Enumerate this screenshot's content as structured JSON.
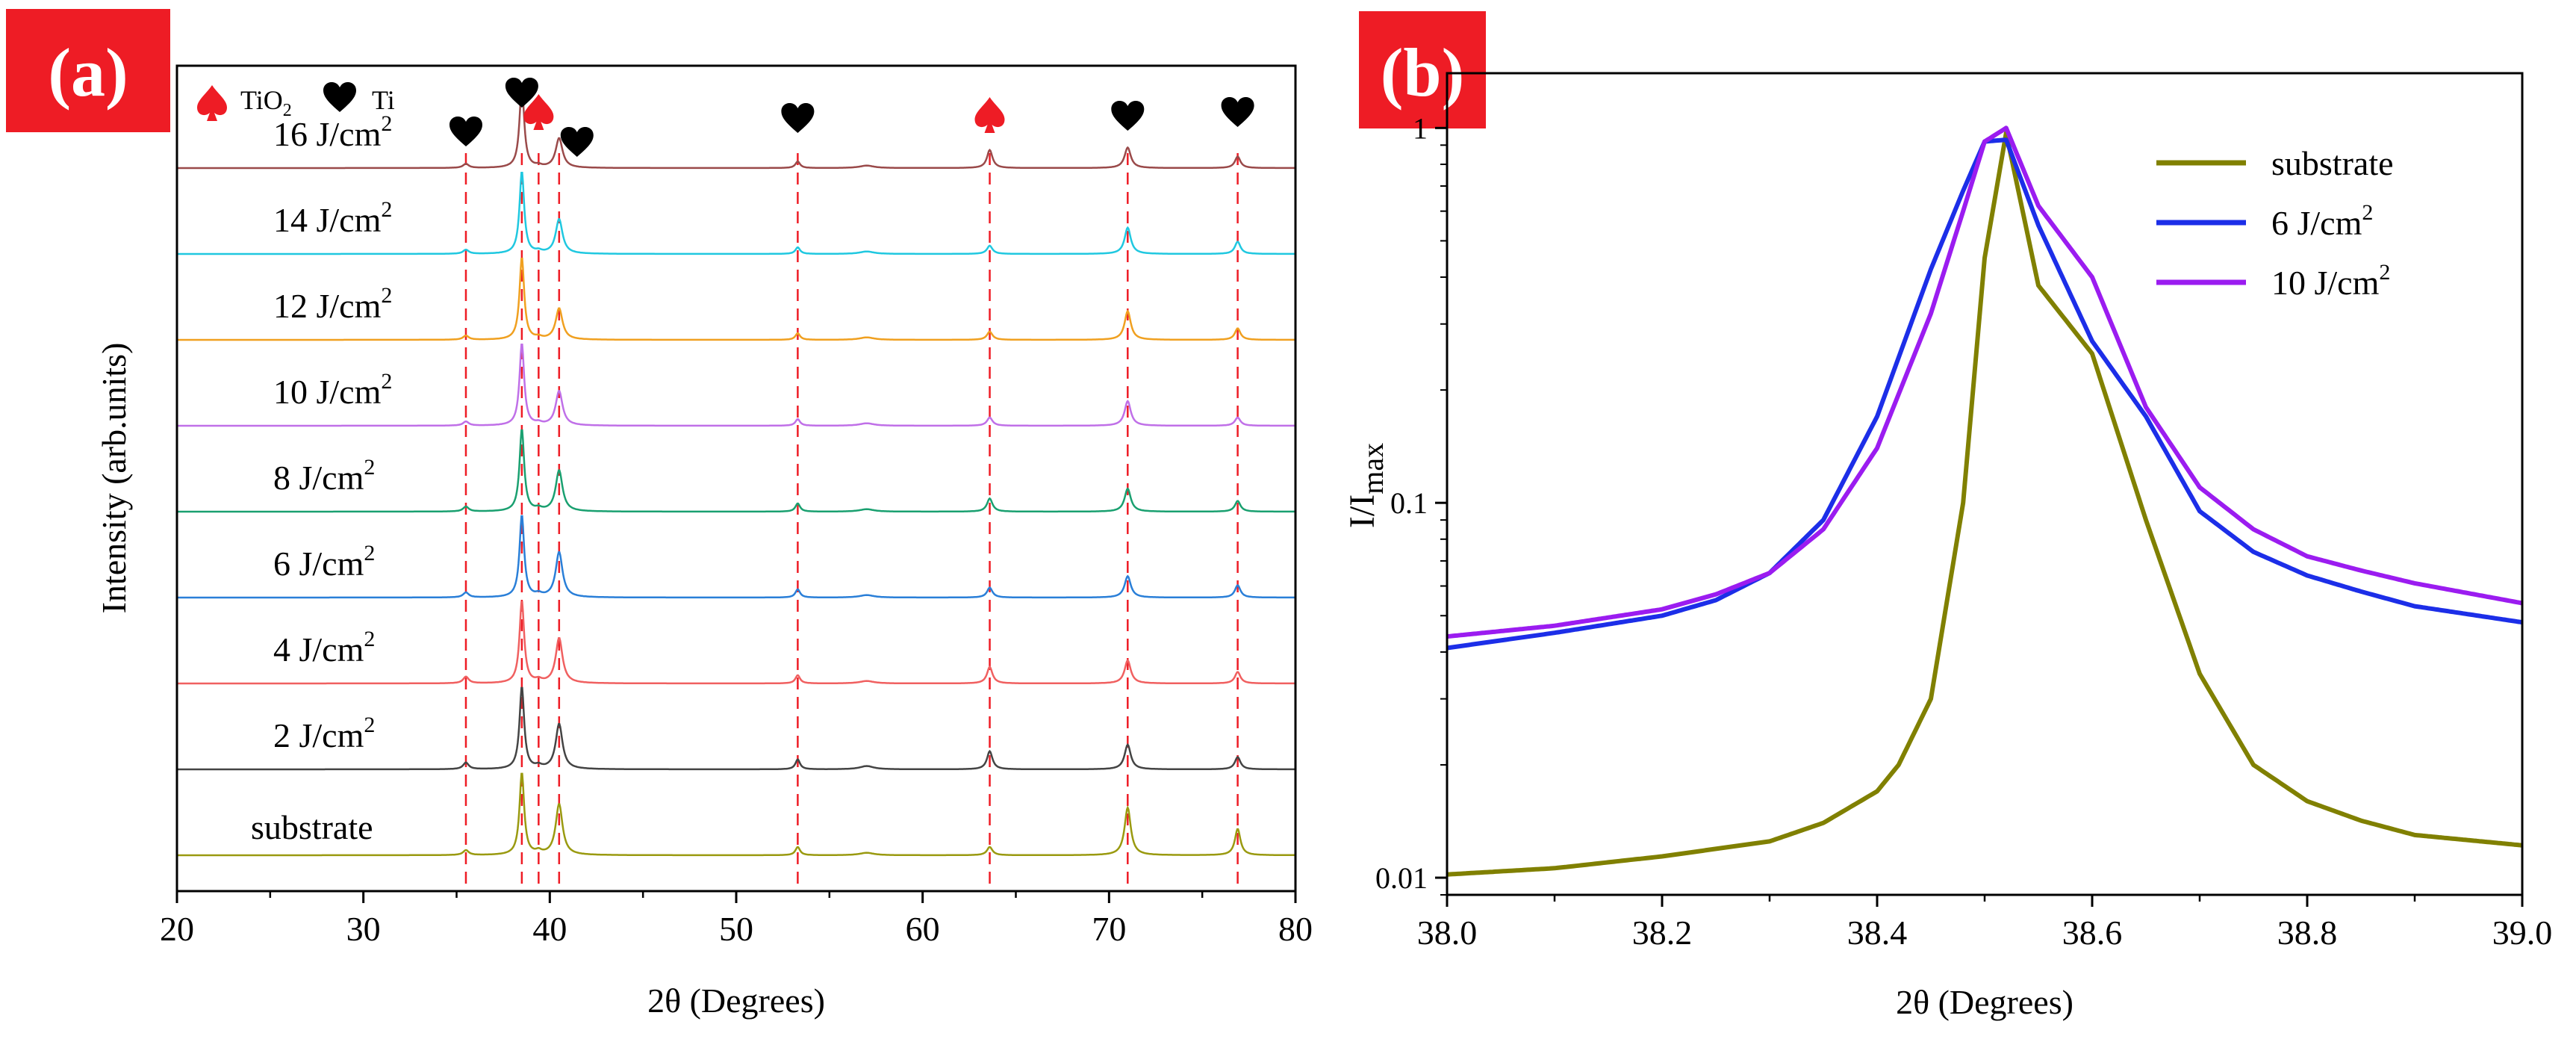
{
  "panel_a": {
    "label": "(a)",
    "legend": {
      "tio2_label": "TiO",
      "tio2_sub": "2",
      "ti_label": "Ti",
      "tio2_color": "#ee1c25",
      "ti_color": "#000000"
    },
    "xlabel": "2θ (Degrees)",
    "ylabel": "Intensity (arb.units)"
  },
  "panel_b": {
    "label": "(b)",
    "xlabel": "2θ (Degrees)",
    "ylabel": "I/I",
    "ylabel_sub": "max"
  },
  "chart_data": [
    {
      "type": "line",
      "title": "(a)",
      "xlabel": "2θ (Degrees)",
      "ylabel": "Intensity (arb.units)",
      "xlim": [
        20,
        80
      ],
      "xticks": [
        20,
        30,
        40,
        50,
        60,
        70,
        80
      ],
      "yticks": [],
      "reference_lines": [
        {
          "x": 35.5,
          "marker": "Ti"
        },
        {
          "x": 38.5,
          "marker": "Ti"
        },
        {
          "x": 39.4,
          "marker": "TiO2"
        },
        {
          "x": 40.5,
          "marker": "Ti"
        },
        {
          "x": 53.3,
          "marker": "Ti"
        },
        {
          "x": 63.6,
          "marker": "TiO2"
        },
        {
          "x": 71.0,
          "marker": "Ti"
        },
        {
          "x": 76.9,
          "marker": "Ti"
        }
      ],
      "peak_positions": [
        35.5,
        38.5,
        40.5,
        53.3,
        57.0,
        63.6,
        71.0,
        76.9
      ],
      "peak_widths": [
        0.18,
        0.15,
        0.22,
        0.15,
        0.45,
        0.18,
        0.2,
        0.18
      ],
      "series": [
        {
          "name": "substrate",
          "label": "substrate",
          "color": "#9a9a10",
          "offset": 0,
          "intensities": [
            0.06,
            1.0,
            0.62,
            0.1,
            0.03,
            0.1,
            0.58,
            0.32
          ]
        },
        {
          "name": "2 J/cm2",
          "label_main": "2 J/cm",
          "label_sup": "2",
          "color": "#444444",
          "offset": 1,
          "intensities": [
            0.08,
            1.0,
            0.55,
            0.12,
            0.04,
            0.22,
            0.3,
            0.15
          ]
        },
        {
          "name": "4 J/cm2",
          "label_main": "4 J/cm",
          "label_sup": "2",
          "color": "#f06060",
          "offset": 2,
          "intensities": [
            0.08,
            1.0,
            0.55,
            0.1,
            0.03,
            0.2,
            0.28,
            0.14
          ]
        },
        {
          "name": "6 J/cm2",
          "label_main": "6 J/cm",
          "label_sup": "2",
          "color": "#2a7fd8",
          "offset": 3,
          "intensities": [
            0.06,
            1.0,
            0.55,
            0.1,
            0.03,
            0.12,
            0.26,
            0.15
          ]
        },
        {
          "name": "8 J/cm2",
          "label_main": "8 J/cm",
          "label_sup": "2",
          "color": "#1aa070",
          "offset": 4,
          "intensities": [
            0.06,
            1.0,
            0.5,
            0.1,
            0.03,
            0.16,
            0.28,
            0.13
          ]
        },
        {
          "name": "10 J/cm2",
          "label_main": "10 J/cm",
          "label_sup": "2",
          "color": "#c070e8",
          "offset": 5,
          "intensities": [
            0.05,
            1.0,
            0.42,
            0.08,
            0.03,
            0.1,
            0.3,
            0.1
          ]
        },
        {
          "name": "12 J/cm2",
          "label_main": "12 J/cm",
          "label_sup": "2",
          "color": "#f0a020",
          "offset": 6,
          "intensities": [
            0.05,
            1.0,
            0.38,
            0.08,
            0.03,
            0.1,
            0.35,
            0.14
          ]
        },
        {
          "name": "14 J/cm2",
          "label_main": "14 J/cm",
          "label_sup": "2",
          "color": "#20c8e0",
          "offset": 7,
          "intensities": [
            0.05,
            1.0,
            0.42,
            0.08,
            0.03,
            0.1,
            0.32,
            0.15
          ]
        },
        {
          "name": "16 J/cm2",
          "label_main": "16 J/cm",
          "label_sup": "2",
          "color": "#9a4a4a",
          "offset": 8,
          "intensities": [
            0.05,
            1.0,
            0.36,
            0.08,
            0.03,
            0.22,
            0.25,
            0.14
          ]
        }
      ]
    },
    {
      "type": "line",
      "title": "(b)",
      "xlabel": "2θ (Degrees)",
      "ylabel": "I/Imax",
      "yscale": "log",
      "xlim": [
        38.0,
        39.0
      ],
      "ylim": [
        0.009,
        1.4
      ],
      "xticks": [
        38.0,
        38.2,
        38.4,
        38.6,
        38.8,
        39.0
      ],
      "xtick_labels": [
        "38.0",
        "38.2",
        "38.4",
        "38.6",
        "38.8",
        "39.0"
      ],
      "yticks": [
        0.01,
        0.1,
        1
      ],
      "ytick_labels": [
        "0.01",
        "0.1",
        "1"
      ],
      "legend": [
        "substrate",
        "6 J/cm2",
        "10 J/cm2"
      ],
      "series": [
        {
          "name": "substrate",
          "label_main": "substrate",
          "label_sup": "",
          "color": "#808000",
          "x": [
            38.0,
            38.1,
            38.2,
            38.3,
            38.35,
            38.4,
            38.42,
            38.45,
            38.48,
            38.5,
            38.52,
            38.55,
            38.6,
            38.65,
            38.7,
            38.75,
            38.8,
            38.85,
            38.9,
            39.0
          ],
          "y": [
            0.0102,
            0.0106,
            0.0114,
            0.0125,
            0.014,
            0.017,
            0.02,
            0.03,
            0.1,
            0.45,
            0.97,
            0.38,
            0.25,
            0.09,
            0.035,
            0.02,
            0.016,
            0.0142,
            0.013,
            0.0122
          ]
        },
        {
          "name": "6 J/cm2",
          "label_main": "6 J/cm",
          "label_sup": "2",
          "color": "#1c2ee8",
          "x": [
            38.0,
            38.1,
            38.2,
            38.25,
            38.3,
            38.35,
            38.4,
            38.45,
            38.48,
            38.5,
            38.52,
            38.55,
            38.6,
            38.65,
            38.7,
            38.75,
            38.8,
            38.85,
            38.9,
            39.0
          ],
          "y": [
            0.041,
            0.045,
            0.05,
            0.055,
            0.065,
            0.09,
            0.17,
            0.42,
            0.68,
            0.92,
            0.93,
            0.55,
            0.27,
            0.17,
            0.095,
            0.074,
            0.064,
            0.058,
            0.053,
            0.048
          ]
        },
        {
          "name": "10 J/cm2",
          "label_main": "10 J/cm",
          "label_sup": "2",
          "color": "#9b1cf0",
          "x": [
            38.0,
            38.1,
            38.2,
            38.25,
            38.3,
            38.35,
            38.4,
            38.45,
            38.48,
            38.5,
            38.52,
            38.55,
            38.6,
            38.65,
            38.7,
            38.75,
            38.8,
            38.85,
            38.9,
            39.0
          ],
          "y": [
            0.044,
            0.047,
            0.052,
            0.057,
            0.065,
            0.085,
            0.14,
            0.32,
            0.6,
            0.92,
            1.0,
            0.62,
            0.4,
            0.18,
            0.11,
            0.085,
            0.072,
            0.066,
            0.061,
            0.054
          ]
        }
      ]
    }
  ]
}
